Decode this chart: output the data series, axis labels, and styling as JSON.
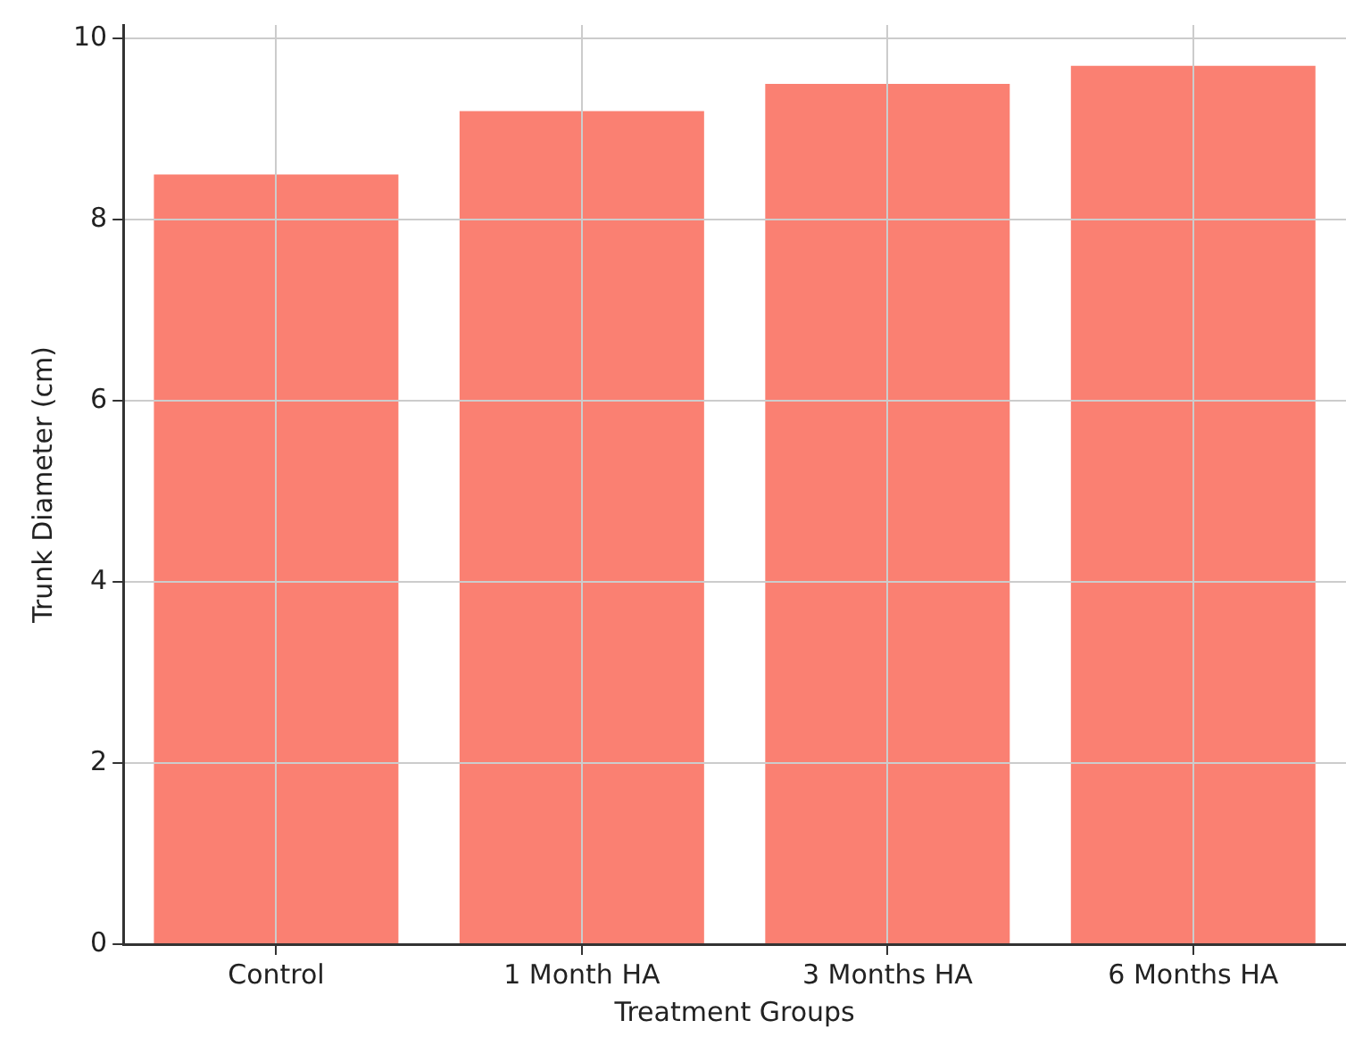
{
  "chart_data": {
    "type": "bar",
    "xlabel": "Treatment Groups",
    "ylabel": "Trunk Diameter (cm)",
    "categories": [
      "Control",
      "1 Month HA",
      "3 Months HA",
      "6 Months HA"
    ],
    "values": [
      8.5,
      9.2,
      9.5,
      9.7
    ],
    "color": "#fa8072",
    "ylim": [
      0,
      10.15
    ],
    "yticks": [
      0,
      2,
      4,
      6,
      8,
      10
    ],
    "grid": true
  }
}
